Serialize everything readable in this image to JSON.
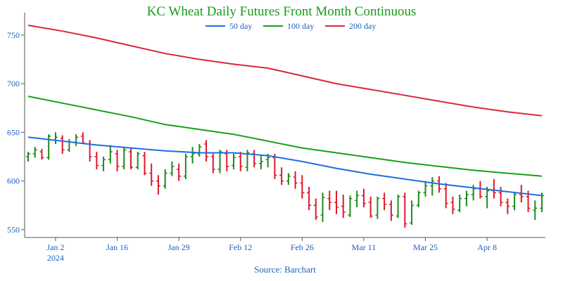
{
  "chart_data": {
    "type": "line",
    "title": "KC Wheat Daily Futures Front Month Continuous",
    "source": "Source: Barchart",
    "y_ticks": [
      550,
      600,
      650,
      700,
      750
    ],
    "ylim": [
      542,
      773
    ],
    "x_ticks": [
      {
        "label": "Jan 2",
        "sublabel": "2024",
        "index": 4
      },
      {
        "label": "Jan 16",
        "sublabel": "",
        "index": 13
      },
      {
        "label": "Jan 29",
        "sublabel": "",
        "index": 22
      },
      {
        "label": "Feb 12",
        "sublabel": "",
        "index": 31
      },
      {
        "label": "Feb 26",
        "sublabel": "",
        "index": 40
      },
      {
        "label": "Mar 11",
        "sublabel": "",
        "index": 49
      },
      {
        "label": "Mar 25",
        "sublabel": "",
        "index": 58
      },
      {
        "label": "Apr 8",
        "sublabel": "",
        "index": 67
      }
    ],
    "n_bars": 76,
    "ohlc": [
      [
        625,
        630,
        620,
        628
      ],
      [
        628,
        635,
        624,
        632
      ],
      [
        630,
        633,
        622,
        624
      ],
      [
        624,
        648,
        622,
        646
      ],
      [
        642,
        650,
        638,
        645
      ],
      [
        644,
        647,
        628,
        632
      ],
      [
        632,
        643,
        630,
        640
      ],
      [
        640,
        648,
        636,
        645
      ],
      [
        646,
        650,
        638,
        639
      ],
      [
        638,
        642,
        620,
        625
      ],
      [
        625,
        630,
        612,
        616
      ],
      [
        616,
        625,
        610,
        622
      ],
      [
        622,
        637,
        618,
        630
      ],
      [
        628,
        632,
        610,
        615
      ],
      [
        615,
        635,
        612,
        632
      ],
      [
        630,
        634,
        612,
        614
      ],
      [
        614,
        630,
        612,
        628
      ],
      [
        626,
        630,
        606,
        608
      ],
      [
        608,
        618,
        595,
        600
      ],
      [
        600,
        606,
        586,
        595
      ],
      [
        595,
        612,
        592,
        608
      ],
      [
        608,
        620,
        605,
        615
      ],
      [
        612,
        618,
        600,
        605
      ],
      [
        605,
        628,
        602,
        625
      ],
      [
        625,
        635,
        618,
        628
      ],
      [
        628,
        638,
        625,
        635
      ],
      [
        638,
        642,
        620,
        625
      ],
      [
        625,
        628,
        608,
        612
      ],
      [
        612,
        632,
        608,
        630
      ],
      [
        628,
        632,
        610,
        615
      ],
      [
        616,
        628,
        612,
        624
      ],
      [
        625,
        630,
        610,
        615
      ],
      [
        614,
        632,
        610,
        629
      ],
      [
        628,
        632,
        614,
        618
      ],
      [
        618,
        626,
        612,
        620
      ],
      [
        622,
        628,
        614,
        624
      ],
      [
        624,
        628,
        602,
        606
      ],
      [
        606,
        614,
        596,
        600
      ],
      [
        600,
        608,
        596,
        605
      ],
      [
        604,
        610,
        592,
        598
      ],
      [
        598,
        606,
        582,
        588
      ],
      [
        588,
        594,
        570,
        575
      ],
      [
        575,
        582,
        560,
        563
      ],
      [
        565,
        588,
        558,
        583
      ],
      [
        582,
        590,
        570,
        578
      ],
      [
        578,
        590,
        566,
        573
      ],
      [
        574,
        586,
        562,
        568
      ],
      [
        565,
        585,
        563,
        582
      ],
      [
        580,
        590,
        573,
        585
      ],
      [
        585,
        592,
        573,
        577
      ],
      [
        578,
        584,
        562,
        564
      ],
      [
        565,
        584,
        561,
        582
      ],
      [
        582,
        588,
        570,
        576
      ],
      [
        576,
        580,
        559,
        565
      ],
      [
        564,
        586,
        562,
        584
      ],
      [
        584,
        588,
        552,
        556
      ],
      [
        557,
        580,
        555,
        575
      ],
      [
        575,
        590,
        573,
        588
      ],
      [
        588,
        600,
        584,
        595
      ],
      [
        595,
        604,
        585,
        600
      ],
      [
        600,
        605,
        588,
        592
      ],
      [
        592,
        598,
        572,
        577
      ],
      [
        578,
        584,
        566,
        571
      ],
      [
        570,
        586,
        568,
        582
      ],
      [
        582,
        590,
        574,
        586
      ],
      [
        586,
        596,
        580,
        592
      ],
      [
        592,
        600,
        582,
        584
      ],
      [
        584,
        594,
        572,
        590
      ],
      [
        590,
        602,
        582,
        588
      ],
      [
        588,
        594,
        574,
        578
      ],
      [
        578,
        582,
        566,
        574
      ],
      [
        574,
        588,
        570,
        586
      ],
      [
        586,
        596,
        578,
        584
      ],
      [
        584,
        590,
        568,
        572
      ],
      [
        570,
        580,
        560,
        572
      ],
      [
        572,
        588,
        568,
        585
      ]
    ],
    "series": [
      {
        "name": "50 day",
        "color": "#1f6fe0",
        "points": [
          [
            0,
            645
          ],
          [
            5,
            641
          ],
          [
            10,
            637
          ],
          [
            15,
            634
          ],
          [
            20,
            631
          ],
          [
            25,
            629
          ],
          [
            30,
            629
          ],
          [
            35,
            626
          ],
          [
            40,
            620
          ],
          [
            45,
            613
          ],
          [
            50,
            607
          ],
          [
            55,
            602
          ],
          [
            60,
            597
          ],
          [
            65,
            593
          ],
          [
            70,
            589
          ],
          [
            75,
            585
          ]
        ]
      },
      {
        "name": "100 day",
        "color": "#17a01a",
        "points": [
          [
            0,
            687
          ],
          [
            5,
            680
          ],
          [
            10,
            673
          ],
          [
            15,
            666
          ],
          [
            20,
            658
          ],
          [
            25,
            653
          ],
          [
            30,
            648
          ],
          [
            35,
            641
          ],
          [
            40,
            634
          ],
          [
            45,
            629
          ],
          [
            50,
            624
          ],
          [
            55,
            619
          ],
          [
            60,
            615
          ],
          [
            65,
            611
          ],
          [
            70,
            608
          ],
          [
            75,
            605
          ]
        ]
      },
      {
        "name": "200 day",
        "color": "#d8283c",
        "points": [
          [
            0,
            760
          ],
          [
            5,
            754
          ],
          [
            10,
            747
          ],
          [
            15,
            739
          ],
          [
            20,
            731
          ],
          [
            25,
            725
          ],
          [
            30,
            720
          ],
          [
            35,
            716
          ],
          [
            40,
            708
          ],
          [
            45,
            700
          ],
          [
            50,
            694
          ],
          [
            55,
            688
          ],
          [
            60,
            682
          ],
          [
            65,
            676
          ],
          [
            70,
            671
          ],
          [
            75,
            667
          ]
        ]
      }
    ],
    "colors": {
      "up": "#1e8a1e",
      "down": "#e0182c",
      "axis": "#555555",
      "tick_text": "#1f5fbf",
      "title": "#1a9a1a"
    },
    "legend_position": "top-center",
    "grid": false
  }
}
